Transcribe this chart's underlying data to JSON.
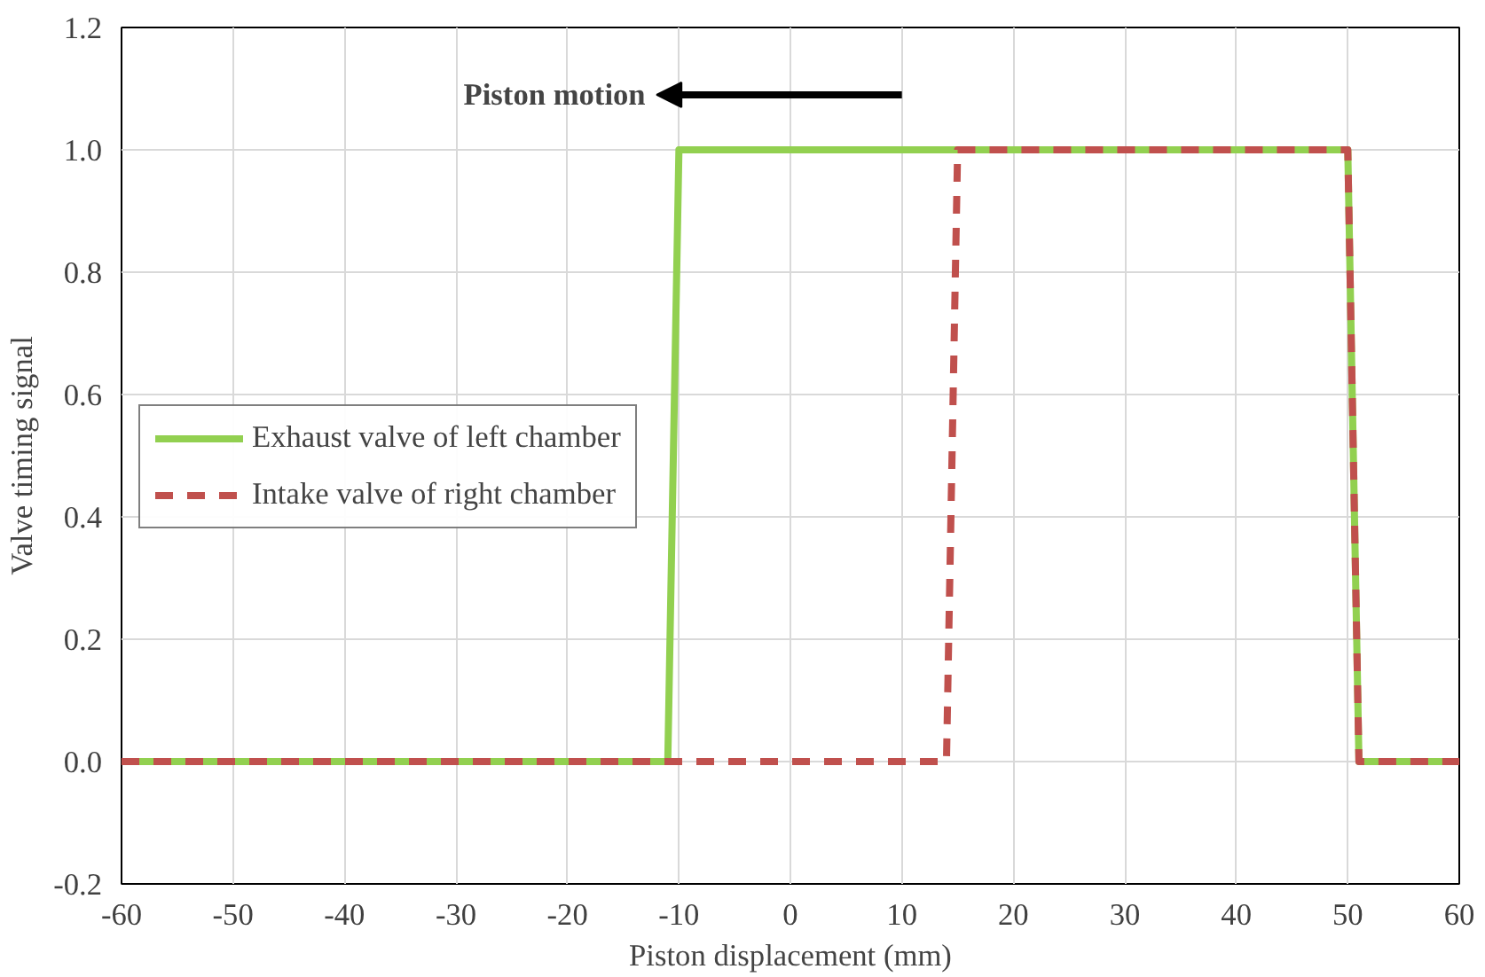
{
  "chart_data": {
    "type": "line",
    "xlabel": "Piston displacement (mm)",
    "ylabel": "Valve timing signal",
    "annotations": [
      "Piston motion"
    ],
    "series": [
      {
        "name": "Exhaust valve of left chamber",
        "color": "#92d050",
        "line_style": "solid",
        "x": [
          -60,
          -11,
          -10,
          50,
          51,
          60
        ],
        "values": [
          0,
          0,
          1,
          1,
          0,
          0
        ]
      },
      {
        "name": "Intake valve of right chamber",
        "color": "#c0504d",
        "line_style": "dashed",
        "x": [
          -60,
          14,
          15,
          50,
          51,
          60
        ],
        "values": [
          0,
          0,
          1,
          1,
          0,
          0
        ]
      }
    ],
    "xlim": [
      -60,
      60
    ],
    "xticks": [
      -60,
      -50,
      -40,
      -30,
      -20,
      -10,
      0,
      10,
      20,
      30,
      40,
      50,
      60
    ],
    "ylim": [
      -0.2,
      1.2
    ],
    "yticks": [
      {
        "value": -0.2,
        "label": "-0.2"
      },
      {
        "value": 0,
        "label": "0.0"
      },
      {
        "value": 0.2,
        "label": "0.2"
      },
      {
        "value": 0.4,
        "label": "0.4"
      },
      {
        "value": 0.6,
        "label": "0.6"
      },
      {
        "value": 0.8,
        "label": "0.8"
      },
      {
        "value": 1.0,
        "label": "1.0"
      },
      {
        "value": 1.2,
        "label": "1.2"
      }
    ],
    "grid": true,
    "legend": "left",
    "marker": "none"
  }
}
